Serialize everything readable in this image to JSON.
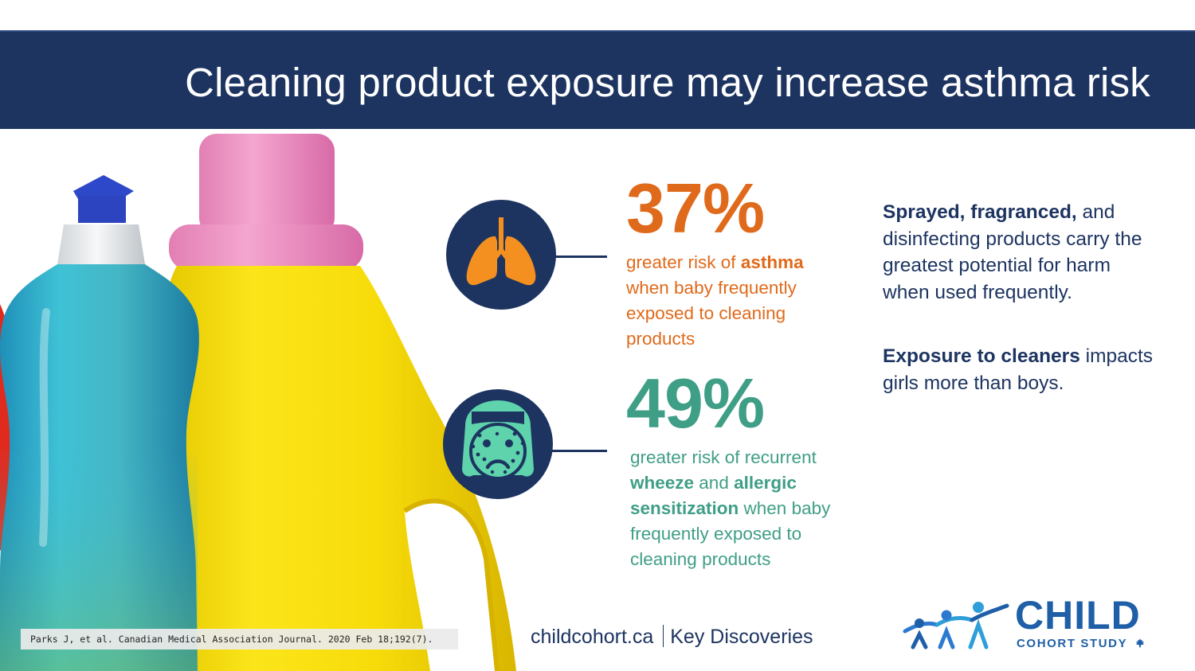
{
  "header": {
    "title": "Cleaning product exposure may increase asthma risk"
  },
  "stats": [
    {
      "value": "37%",
      "caption_pre": "greater risk of ",
      "caption_bold": "asthma",
      "caption_post": " when baby frequently exposed to cleaning products",
      "icon": "lungs-icon",
      "color": "#e06a1b"
    },
    {
      "value": "49%",
      "caption_pre": "greater risk of recurrent ",
      "caption_bold_1": "wheeze",
      "caption_mid": " and ",
      "caption_bold_2": "allergic sensitization",
      "caption_post": " when baby frequently exposed to cleaning products",
      "icon": "rash-face-icon",
      "color": "#3f9e86"
    }
  ],
  "side_notes": [
    {
      "bold": "Sprayed, fragranced,",
      "text": " and disinfecting products carry the greatest potential for harm when used frequently."
    },
    {
      "bold": "Exposure to cleaners",
      "text": " impacts girls more than boys."
    }
  ],
  "citation": "Parks J, et al. Canadian Medical Association Journal. 2020 Feb 18;192(7).",
  "footer": {
    "site": "childcohort.ca",
    "section": "Key Discoveries"
  },
  "logo": {
    "word": "CHILD",
    "subtitle": "COHORT STUDY",
    "leaf_icon": "maple-leaf-icon",
    "people_icon": "family-figures-icon"
  },
  "colors": {
    "navy": "#1d3461",
    "orange": "#e06a1b",
    "teal": "#3f9e86",
    "logo_blue": "#1e5fa8"
  }
}
